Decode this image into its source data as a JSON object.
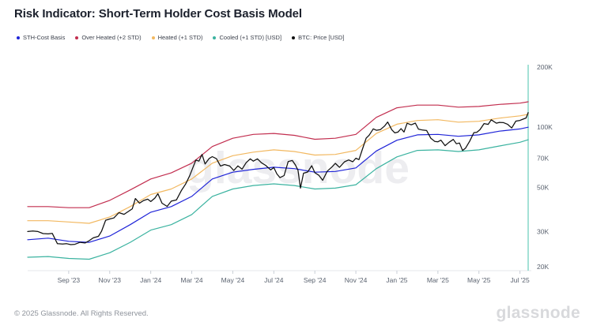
{
  "header": {
    "title": "Risk Indicator: Short-Term Holder Cost Basis Model"
  },
  "footer": {
    "copyright": "© 2025 Glassnode. All Rights Reserved.",
    "logo": "glassnode"
  },
  "colors": {
    "title": "#1b202c",
    "tick_label": "#5b6370",
    "axis_baseline": "#e4e7eb",
    "axis_tick": "#c9ced6",
    "right_axis_line": "#86d7c9",
    "watermark": "#ededf0",
    "footer_text": "#8e939b",
    "footer_logo": "#d8d9dc",
    "sth_cost_basis": "#1f24d8",
    "over_heated": "#c22e4f",
    "heated": "#f2b860",
    "cooled": "#3bb3a0",
    "btc_price": "#101010"
  },
  "chart_data": {
    "type": "line",
    "title": "Risk Indicator: Short-Term Holder Cost Basis Model",
    "watermark": "glassnode",
    "grid": "off",
    "legend_position": "top-left",
    "x_axis": {
      "unit": "months since Jul 2023",
      "ticks": [
        {
          "t": 2,
          "label": "Sep '23"
        },
        {
          "t": 4,
          "label": "Nov '23"
        },
        {
          "t": 6,
          "label": "Jan '24"
        },
        {
          "t": 8,
          "label": "Mar '24"
        },
        {
          "t": 10,
          "label": "May '24"
        },
        {
          "t": 12,
          "label": "Jul '24"
        },
        {
          "t": 14,
          "label": "Sep '24"
        },
        {
          "t": 16,
          "label": "Nov '24"
        },
        {
          "t": 18,
          "label": "Jan '25"
        },
        {
          "t": 20,
          "label": "Mar '25"
        },
        {
          "t": 22,
          "label": "May '25"
        },
        {
          "t": 24,
          "label": "Jul '25"
        }
      ]
    },
    "y_axis": {
      "scale": "log",
      "unit": "USD (thousands)",
      "range_k": [
        20,
        200
      ],
      "ticks": [
        {
          "v": 200,
          "label": "200K"
        },
        {
          "v": 100,
          "label": "100K"
        },
        {
          "v": 70,
          "label": "70K"
        },
        {
          "v": 50,
          "label": "50K"
        },
        {
          "v": 30,
          "label": "30K"
        },
        {
          "v": 20,
          "label": "20K"
        }
      ]
    },
    "series": [
      {
        "id": "sth_cost_basis",
        "name": "STH-Cost Basis",
        "color": "#1f24d8",
        "width": 1.2,
        "points": [
          [
            0,
            27.3
          ],
          [
            1,
            27.8
          ],
          [
            2,
            26.8
          ],
          [
            3,
            26.5
          ],
          [
            4,
            28.5
          ],
          [
            5,
            32.5
          ],
          [
            6,
            37.5
          ],
          [
            7,
            40
          ],
          [
            8,
            45
          ],
          [
            9,
            55
          ],
          [
            10,
            59.5
          ],
          [
            11,
            61.5
          ],
          [
            12,
            63
          ],
          [
            13,
            62
          ],
          [
            14,
            59.5
          ],
          [
            15,
            60
          ],
          [
            16,
            62.5
          ],
          [
            17,
            76
          ],
          [
            18,
            86
          ],
          [
            19,
            91.5
          ],
          [
            20,
            92
          ],
          [
            21,
            90
          ],
          [
            22,
            91.5
          ],
          [
            23,
            95.5
          ],
          [
            24,
            98
          ],
          [
            24.4,
            100
          ]
        ]
      },
      {
        "id": "over_heated",
        "name": "Over Heated (+2 STD)",
        "color": "#c22e4f",
        "width": 1.2,
        "points": [
          [
            0,
            40
          ],
          [
            1,
            40
          ],
          [
            2,
            39.5
          ],
          [
            3,
            39.5
          ],
          [
            4,
            43
          ],
          [
            5,
            48.5
          ],
          [
            6,
            55
          ],
          [
            7,
            59
          ],
          [
            8,
            66
          ],
          [
            9,
            80
          ],
          [
            10,
            88
          ],
          [
            11,
            92
          ],
          [
            12,
            93
          ],
          [
            13,
            91
          ],
          [
            14,
            87
          ],
          [
            15,
            88
          ],
          [
            16,
            92
          ],
          [
            17,
            112
          ],
          [
            18,
            125
          ],
          [
            19,
            129
          ],
          [
            20,
            129
          ],
          [
            21,
            126
          ],
          [
            22,
            127
          ],
          [
            23,
            130
          ],
          [
            24,
            132
          ],
          [
            24.4,
            134
          ]
        ]
      },
      {
        "id": "heated",
        "name": "Heated (+1 STD)",
        "color": "#f2b860",
        "width": 1.2,
        "points": [
          [
            0,
            34
          ],
          [
            1,
            34
          ],
          [
            2,
            33.5
          ],
          [
            3,
            33
          ],
          [
            4,
            35.5
          ],
          [
            5,
            40
          ],
          [
            6,
            46
          ],
          [
            7,
            49
          ],
          [
            8,
            55
          ],
          [
            9,
            66
          ],
          [
            10,
            72
          ],
          [
            11,
            75
          ],
          [
            12,
            77
          ],
          [
            13,
            75.5
          ],
          [
            14,
            72.5
          ],
          [
            15,
            73
          ],
          [
            16,
            76.5
          ],
          [
            17,
            93
          ],
          [
            18,
            103.5
          ],
          [
            19,
            108
          ],
          [
            20,
            109
          ],
          [
            21,
            106
          ],
          [
            22,
            107
          ],
          [
            23,
            111
          ],
          [
            24,
            114
          ],
          [
            24.4,
            116
          ]
        ]
      },
      {
        "id": "cooled",
        "name": "Cooled (+1 STD) [USD]",
        "color": "#3bb3a0",
        "width": 1.2,
        "points": [
          [
            0,
            22.3
          ],
          [
            1,
            22.5
          ],
          [
            2,
            22
          ],
          [
            3,
            21.8
          ],
          [
            4,
            23.5
          ],
          [
            5,
            26.5
          ],
          [
            6,
            30.5
          ],
          [
            7,
            32.5
          ],
          [
            8,
            36.5
          ],
          [
            9,
            45
          ],
          [
            10,
            49
          ],
          [
            11,
            51
          ],
          [
            12,
            52
          ],
          [
            13,
            51
          ],
          [
            14,
            49
          ],
          [
            15,
            49.5
          ],
          [
            16,
            51.5
          ],
          [
            17,
            62
          ],
          [
            18,
            71
          ],
          [
            19,
            76.5
          ],
          [
            20,
            77
          ],
          [
            21,
            75.5
          ],
          [
            22,
            77
          ],
          [
            23,
            80.5
          ],
          [
            24,
            84
          ],
          [
            24.4,
            86.5
          ]
        ]
      },
      {
        "id": "btc_price",
        "name": "BTC: Price [USD]",
        "color": "#101010",
        "width": 1.25,
        "points": [
          [
            0,
            30.0
          ],
          [
            0.25,
            30.2
          ],
          [
            0.5,
            30.0
          ],
          [
            0.75,
            29.3
          ],
          [
            1,
            29.2
          ],
          [
            1.2,
            29.4
          ],
          [
            1.45,
            26.1
          ],
          [
            1.7,
            26.0
          ],
          [
            1.9,
            26.1
          ],
          [
            2.1,
            25.8
          ],
          [
            2.3,
            25.9
          ],
          [
            2.55,
            26.5
          ],
          [
            2.8,
            26.3
          ],
          [
            3,
            27.0
          ],
          [
            3.2,
            27.9
          ],
          [
            3.45,
            28.4
          ],
          [
            3.6,
            30.1
          ],
          [
            3.8,
            34.2
          ],
          [
            4,
            34.7
          ],
          [
            4.2,
            35.1
          ],
          [
            4.45,
            37.3
          ],
          [
            4.7,
            36.6
          ],
          [
            4.9,
            37.8
          ],
          [
            5.1,
            39.0
          ],
          [
            5.25,
            43.9
          ],
          [
            5.45,
            41.6
          ],
          [
            5.65,
            42.9
          ],
          [
            5.85,
            43.6
          ],
          [
            6,
            42.4
          ],
          [
            6.2,
            44.1
          ],
          [
            6.35,
            46.4
          ],
          [
            6.55,
            41.6
          ],
          [
            6.8,
            40.1
          ],
          [
            7,
            42.6
          ],
          [
            7.25,
            43.2
          ],
          [
            7.5,
            48.3
          ],
          [
            7.7,
            51.9
          ],
          [
            7.9,
            57.1
          ],
          [
            8.05,
            62.5
          ],
          [
            8.2,
            68.4
          ],
          [
            8.35,
            67.6
          ],
          [
            8.5,
            73.0
          ],
          [
            8.65,
            65.4
          ],
          [
            8.85,
            69.7
          ],
          [
            9,
            71.2
          ],
          [
            9.2,
            69.5
          ],
          [
            9.4,
            63.9
          ],
          [
            9.6,
            65.0
          ],
          [
            9.85,
            63.9
          ],
          [
            10.05,
            60.7
          ],
          [
            10.25,
            64.0
          ],
          [
            10.45,
            61.6
          ],
          [
            10.65,
            66.4
          ],
          [
            10.85,
            69.4
          ],
          [
            11,
            67.6
          ],
          [
            11.2,
            69.4
          ],
          [
            11.4,
            66.3
          ],
          [
            11.6,
            64.4
          ],
          [
            11.85,
            61.1
          ],
          [
            12,
            62.8
          ],
          [
            12.15,
            58.3
          ],
          [
            12.3,
            55.9
          ],
          [
            12.5,
            57.2
          ],
          [
            12.7,
            67.3
          ],
          [
            12.9,
            68.1
          ],
          [
            13.05,
            64.7
          ],
          [
            13.18,
            60.8
          ],
          [
            13.3,
            49.5
          ],
          [
            13.45,
            58.8
          ],
          [
            13.65,
            59.6
          ],
          [
            13.85,
            64.1
          ],
          [
            14,
            59.1
          ],
          [
            14.2,
            57.4
          ],
          [
            14.38,
            54.2
          ],
          [
            14.6,
            60.1
          ],
          [
            14.85,
            63.4
          ],
          [
            15,
            65.9
          ],
          [
            15.2,
            62.9
          ],
          [
            15.45,
            67.1
          ],
          [
            15.65,
            68.5
          ],
          [
            15.85,
            67.1
          ],
          [
            16,
            69.9
          ],
          [
            16.15,
            68.8
          ],
          [
            16.3,
            76.6
          ],
          [
            16.5,
            88.1
          ],
          [
            16.65,
            91.2
          ],
          [
            16.85,
            98.1
          ],
          [
            17,
            96.5
          ],
          [
            17.2,
            97.3
          ],
          [
            17.4,
            101.3
          ],
          [
            17.55,
            106.2
          ],
          [
            17.75,
            97.1
          ],
          [
            17.9,
            93.6
          ],
          [
            18.05,
            94.5
          ],
          [
            18.2,
            98.3
          ],
          [
            18.35,
            94.6
          ],
          [
            18.5,
            104.6
          ],
          [
            18.7,
            102.7
          ],
          [
            18.9,
            104.8
          ],
          [
            19.05,
            97.8
          ],
          [
            19.25,
            96.7
          ],
          [
            19.45,
            96.2
          ],
          [
            19.65,
            88.1
          ],
          [
            19.85,
            84.8
          ],
          [
            20,
            84.5
          ],
          [
            20.15,
            86.1
          ],
          [
            20.35,
            80.8
          ],
          [
            20.55,
            84.1
          ],
          [
            20.75,
            86.8
          ],
          [
            20.9,
            82.6
          ],
          [
            21.05,
            83.3
          ],
          [
            21.2,
            76.4
          ],
          [
            21.35,
            78.6
          ],
          [
            21.55,
            85.2
          ],
          [
            21.75,
            93.9
          ],
          [
            21.9,
            94.3
          ],
          [
            22.05,
            97.1
          ],
          [
            22.25,
            104.2
          ],
          [
            22.45,
            103.3
          ],
          [
            22.6,
            108.9
          ],
          [
            22.85,
            104.7
          ],
          [
            23,
            105.7
          ],
          [
            23.2,
            105.4
          ],
          [
            23.4,
            103.3
          ],
          [
            23.6,
            99.1
          ],
          [
            23.8,
            107.2
          ],
          [
            24,
            108.1
          ],
          [
            24.15,
            109.7
          ],
          [
            24.3,
            111.2
          ],
          [
            24.4,
            118.3
          ]
        ]
      }
    ]
  }
}
